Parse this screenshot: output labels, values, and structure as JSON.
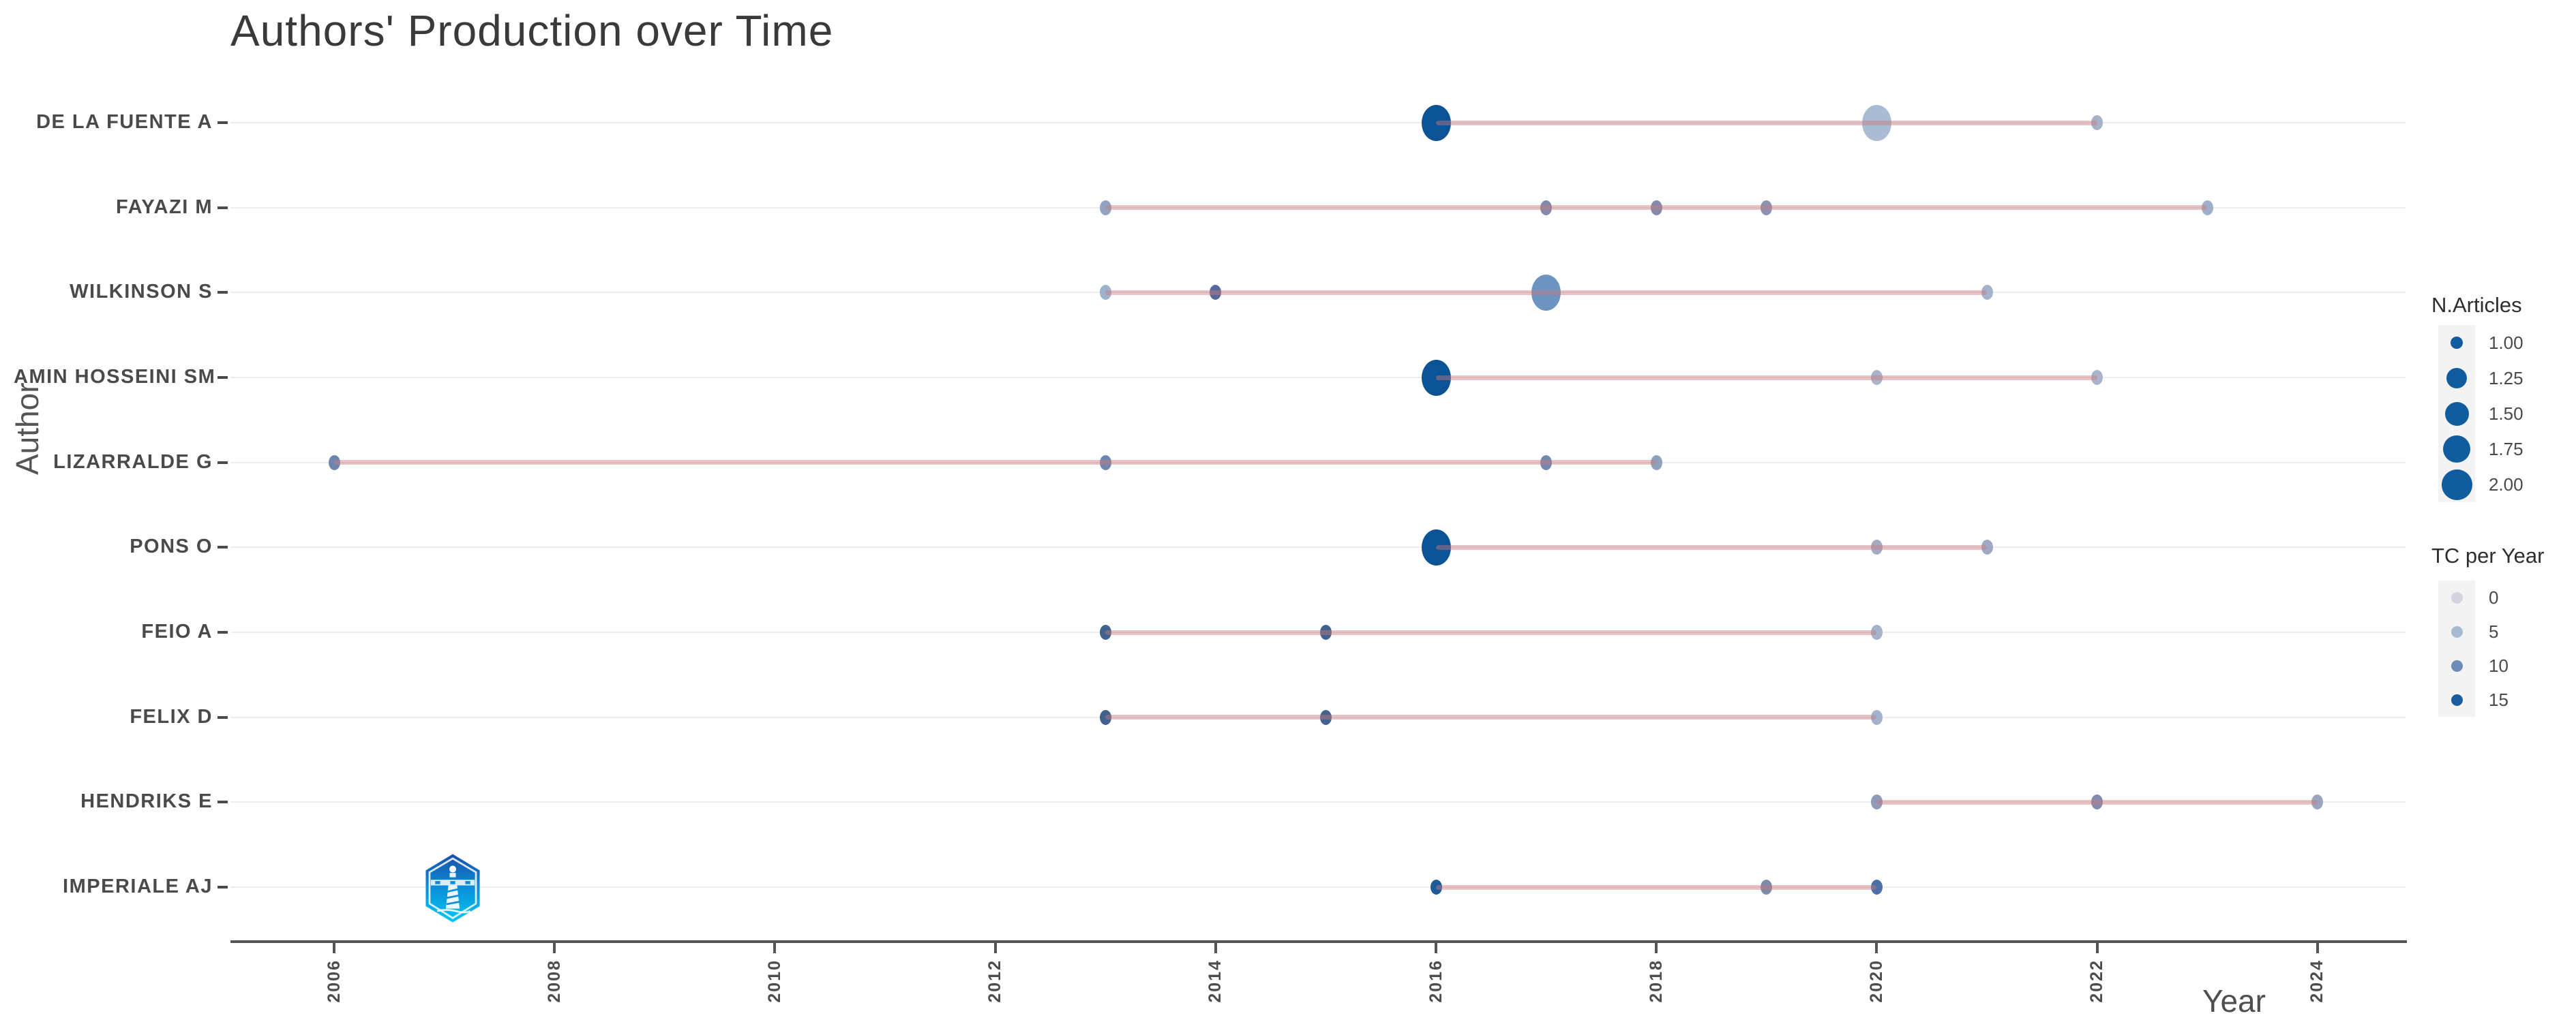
{
  "title": "Authors' Production over Time",
  "axes": {
    "x_label": "Year",
    "y_label": "Author"
  },
  "legend": {
    "size_title": "N.Articles",
    "size_items": [
      {
        "label": "1.00",
        "diameter": 18
      },
      {
        "label": "1.25",
        "diameter": 30
      },
      {
        "label": "1.50",
        "diameter": 35
      },
      {
        "label": "1.75",
        "diameter": 40
      },
      {
        "label": "2.00",
        "diameter": 45
      }
    ],
    "size_dot_color": "#115c9f",
    "color_title": "TC per Year",
    "color_items": [
      {
        "label": "0",
        "color": "#d2d5e0"
      },
      {
        "label": "5",
        "color": "#a7b9d3"
      },
      {
        "label": "10",
        "color": "#6d8cba"
      },
      {
        "label": "15",
        "color": "#1c5c9f"
      }
    ]
  },
  "colors": {
    "timeline_line": "rgba(201,121,126,0.45)",
    "gridline": "#ececec",
    "axis": "#555555",
    "title_text": "#3a3a3a",
    "label_text": "#4a4a4a"
  },
  "icons": {
    "logo": "hexagon-lighthouse-logo"
  },
  "chart_data": {
    "type": "scatter",
    "title": "Authors' Production over Time",
    "xlabel": "Year",
    "ylabel": "Author",
    "x_ticks": [
      2006,
      2008,
      2010,
      2012,
      2014,
      2016,
      2018,
      2020,
      2022,
      2024
    ],
    "xlim": [
      2004.9,
      2024.9
    ],
    "grid": "horizontal-only",
    "legend_position": "right",
    "size_encoding": "N.Articles (1.00 - 2.00)",
    "color_encoding": "TC per Year (0 - 15, light to dark blue)",
    "authors": [
      {
        "name": "DE LA FUENTE A",
        "line": [
          2016,
          2022
        ],
        "points": [
          {
            "year": 2016,
            "articles": 2,
            "tc_per_year": 15,
            "color": "#0b5394"
          },
          {
            "year": 2020,
            "articles": 2,
            "tc_per_year": 3,
            "color": "#a9bcd4"
          },
          {
            "year": 2022,
            "articles": 1,
            "tc_per_year": 3,
            "color": "#a6b0c6"
          }
        ]
      },
      {
        "name": "FAYAZI M",
        "line": [
          2013,
          2023
        ],
        "points": [
          {
            "year": 2013,
            "articles": 1,
            "tc_per_year": 4,
            "color": "#93a2bf"
          },
          {
            "year": 2017,
            "articles": 1,
            "tc_per_year": 6,
            "color": "#8389aa"
          },
          {
            "year": 2018,
            "articles": 1,
            "tc_per_year": 6,
            "color": "#8389aa"
          },
          {
            "year": 2019,
            "articles": 1,
            "tc_per_year": 5,
            "color": "#8b93b1"
          },
          {
            "year": 2023,
            "articles": 1,
            "tc_per_year": 3,
            "color": "#9fafc9"
          }
        ]
      },
      {
        "name": "WILKINSON S",
        "line": [
          2013,
          2021
        ],
        "points": [
          {
            "year": 2013,
            "articles": 1,
            "tc_per_year": 4,
            "color": "#9db2cb"
          },
          {
            "year": 2014,
            "articles": 1,
            "tc_per_year": 11,
            "color": "#54689b"
          },
          {
            "year": 2017,
            "articles": 2,
            "tc_per_year": 8,
            "color": "#6d93c1"
          },
          {
            "year": 2021,
            "articles": 1,
            "tc_per_year": 3,
            "color": "#a4b2cb"
          }
        ]
      },
      {
        "name": "AMIN HOSSEINI SM",
        "line": [
          2016,
          2022
        ],
        "points": [
          {
            "year": 2016,
            "articles": 2,
            "tc_per_year": 15,
            "color": "#0b5394"
          },
          {
            "year": 2020,
            "articles": 1,
            "tc_per_year": 3,
            "color": "#a9b4ca"
          },
          {
            "year": 2022,
            "articles": 1,
            "tc_per_year": 3,
            "color": "#a9b4ca"
          }
        ]
      },
      {
        "name": "LIZARRALDE G",
        "line": [
          2006,
          2018
        ],
        "points": [
          {
            "year": 2006,
            "articles": 1,
            "tc_per_year": 8,
            "color": "#6e86ad"
          },
          {
            "year": 2013,
            "articles": 1,
            "tc_per_year": 8,
            "color": "#6e86ad"
          },
          {
            "year": 2017,
            "articles": 1,
            "tc_per_year": 7,
            "color": "#7289ae"
          },
          {
            "year": 2018,
            "articles": 1,
            "tc_per_year": 5,
            "color": "#8ea1bf"
          }
        ]
      },
      {
        "name": "PONS O",
        "line": [
          2016,
          2021
        ],
        "points": [
          {
            "year": 2016,
            "articles": 2,
            "tc_per_year": 15,
            "color": "#0b5394"
          },
          {
            "year": 2020,
            "articles": 1,
            "tc_per_year": 3,
            "color": "#a5aac2"
          },
          {
            "year": 2021,
            "articles": 1,
            "tc_per_year": 4,
            "color": "#9fa9c3"
          }
        ]
      },
      {
        "name": "FEIO A",
        "line": [
          2013,
          2020
        ],
        "points": [
          {
            "year": 2013,
            "articles": 1,
            "tc_per_year": 12,
            "color": "#41618f"
          },
          {
            "year": 2015,
            "articles": 1,
            "tc_per_year": 12,
            "color": "#41618f"
          },
          {
            "year": 2020,
            "articles": 1,
            "tc_per_year": 3,
            "color": "#a2b3cb"
          }
        ]
      },
      {
        "name": "FELIX D",
        "line": [
          2013,
          2020
        ],
        "points": [
          {
            "year": 2013,
            "articles": 1,
            "tc_per_year": 12,
            "color": "#41618f"
          },
          {
            "year": 2015,
            "articles": 1,
            "tc_per_year": 12,
            "color": "#41618f"
          },
          {
            "year": 2020,
            "articles": 1,
            "tc_per_year": 3,
            "color": "#a2b3cb"
          }
        ]
      },
      {
        "name": "HENDRIKS E",
        "line": [
          2020,
          2024
        ],
        "points": [
          {
            "year": 2020,
            "articles": 1,
            "tc_per_year": 5,
            "color": "#8d9ab8"
          },
          {
            "year": 2022,
            "articles": 1,
            "tc_per_year": 6,
            "color": "#828aae"
          },
          {
            "year": 2024,
            "articles": 1,
            "tc_per_year": 4,
            "color": "#9aa5c0"
          }
        ]
      },
      {
        "name": "IMPERIALE AJ",
        "line": [
          2016,
          2020
        ],
        "points": [
          {
            "year": 2016,
            "articles": 1,
            "tc_per_year": 14,
            "color": "#1e5b99"
          },
          {
            "year": 2019,
            "articles": 1,
            "tc_per_year": 6,
            "color": "#7e88a9"
          },
          {
            "year": 2020,
            "articles": 1,
            "tc_per_year": 10,
            "color": "#4c6fa5"
          }
        ]
      }
    ]
  }
}
